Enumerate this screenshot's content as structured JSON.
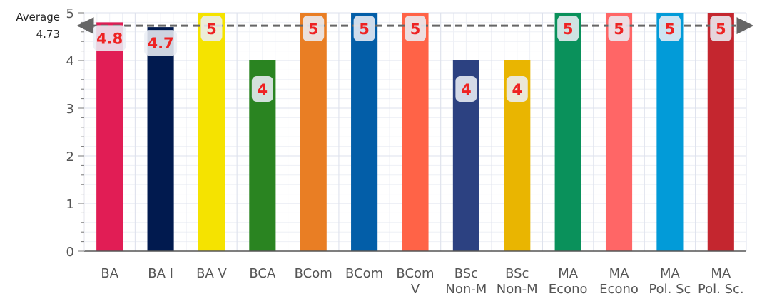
{
  "chart_data": {
    "type": "bar",
    "categories": [
      [
        "BA"
      ],
      [
        "BA I"
      ],
      [
        "BA V"
      ],
      [
        "BCA"
      ],
      [
        "BCom"
      ],
      [
        "BCom"
      ],
      [
        "BCom",
        "V"
      ],
      [
        "BSc",
        "Non-M"
      ],
      [
        "BSc",
        "Non-M"
      ],
      [
        "MA",
        "Econo"
      ],
      [
        "MA",
        "Econo"
      ],
      [
        "MA",
        "Pol. Sc"
      ],
      [
        "MA",
        "Pol. Sc."
      ]
    ],
    "values": [
      4.8,
      4.7,
      5,
      4,
      5,
      5,
      5,
      4,
      4,
      5,
      5,
      5,
      5
    ],
    "data_labels": [
      "4.8",
      "4.7",
      "5",
      "4",
      "5",
      "5",
      "5",
      "4",
      "4",
      "5",
      "5",
      "5",
      "5"
    ],
    "colors": [
      "#e11d55",
      "#011a4f",
      "#f5e300",
      "#2a8421",
      "#e97e24",
      "#035ea8",
      "#ff6347",
      "#2c4181",
      "#e9b501",
      "#0a915b",
      "#ff6666",
      "#029bd8",
      "#c4262f"
    ],
    "ylim": [
      0,
      5
    ],
    "yticks": [
      "0",
      "1",
      "2",
      "3",
      "4",
      "5"
    ],
    "grid": true,
    "reference_line": {
      "label": "Average",
      "value_label": "4.73",
      "value": 4.73,
      "color": "#666666"
    }
  }
}
